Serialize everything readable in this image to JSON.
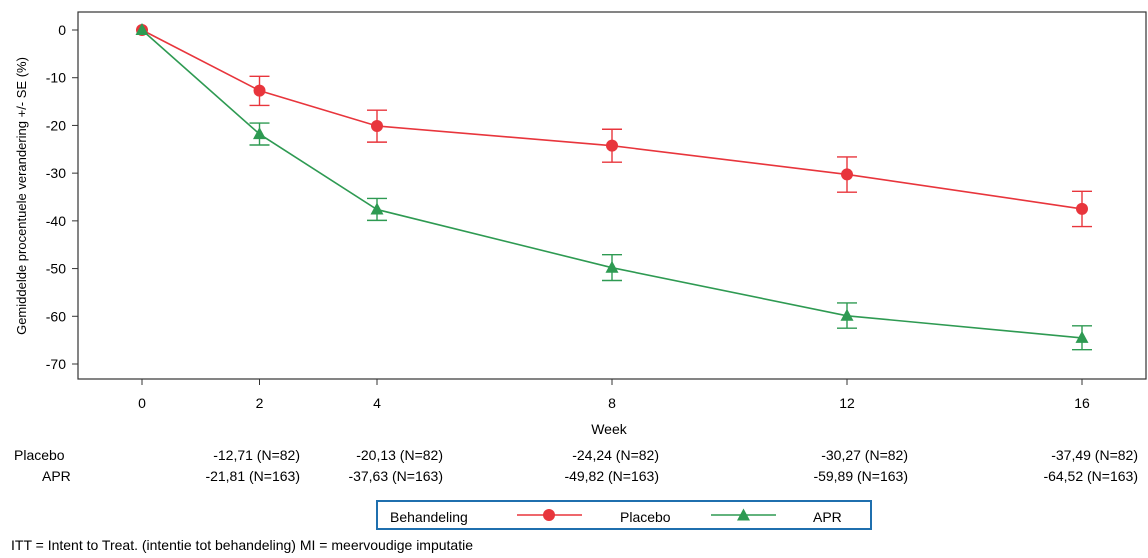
{
  "chart_data": {
    "type": "line",
    "title": "",
    "xlabel": "Week",
    "ylabel": "Gemiddelde procentuele verandering +/- SE (%)",
    "x": [
      0,
      2,
      4,
      8,
      12,
      16
    ],
    "x_ticks": [
      "0",
      "2",
      "4",
      "8",
      "12",
      "16"
    ],
    "y_ticks": [
      "0",
      "-10",
      "-20",
      "-30",
      "-40",
      "-50",
      "-60",
      "-70"
    ],
    "xlim": [
      0,
      16
    ],
    "ylim": [
      -70,
      0
    ],
    "grid": false,
    "series": [
      {
        "name": "Placebo",
        "color": "#e8353c",
        "marker": "circle",
        "values": [
          0,
          -12.71,
          -20.13,
          -24.24,
          -30.27,
          -37.49
        ],
        "error_low": [
          0,
          -15.8,
          -23.5,
          -27.7,
          -34.0,
          -41.2
        ],
        "error_high": [
          0,
          -9.7,
          -16.8,
          -20.8,
          -26.6,
          -33.8
        ]
      },
      {
        "name": "APR",
        "color": "#2e9a52",
        "marker": "triangle",
        "values": [
          0,
          -21.81,
          -37.63,
          -49.82,
          -59.89,
          -64.52
        ],
        "error_low": [
          0,
          -24.1,
          -39.9,
          -52.5,
          -62.5,
          -67.0
        ],
        "error_high": [
          0,
          -19.5,
          -35.3,
          -47.1,
          -57.2,
          -62.0
        ]
      }
    ],
    "table": {
      "rows": [
        {
          "label": "Placebo",
          "cells": [
            "-12,71 (N=82)",
            "-20,13 (N=82)",
            "-24,24 (N=82)",
            "-30,27 (N=82)",
            "-37,49 (N=82)"
          ]
        },
        {
          "label": "APR",
          "cells": [
            "-21,81 (N=163)",
            "-37,63 (N=163)",
            "-49,82 (N=163)",
            "-59,89 (N=163)",
            "-64,52 (N=163)"
          ]
        }
      ]
    },
    "legend": {
      "title": "Behandeling",
      "placement": "bottom",
      "items": [
        "Placebo",
        "APR"
      ]
    },
    "footnote": "ITT = Intent to Treat. (intentie tot behandeling) MI = meervoudige imputatie"
  }
}
